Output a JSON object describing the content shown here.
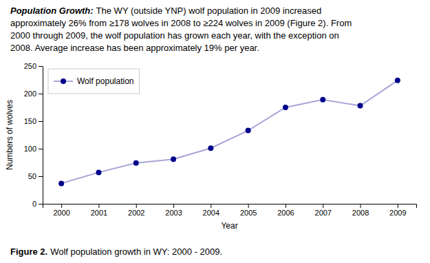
{
  "chart_data": {
    "type": "line",
    "title": "Population Growth:",
    "subtitle": [
      "The WY (outside YNP) wolf population in 2009 increased",
      "approximately 26% from ≥178 wolves in 2008 to ≥224 wolves in 2009 (Figure 2). From",
      "2000 through 2009, the wolf population has grown each year, with the exception on",
      "2008. Average increase has been approximately 19% per year."
    ],
    "annotations": [
      "Figure 2.",
      "Wolf population growth in WY: 2000 - 2009."
    ],
    "x_label": "Year",
    "y_label": "Numbers of wolves",
    "x": [
      2000,
      2001,
      2002,
      2003,
      2004,
      2005,
      2006,
      2007,
      2008,
      2009
    ],
    "series": [
      {
        "name": "Wolf population",
        "color": "#00008B",
        "marker": "circle",
        "values": [
          37,
          57,
          74,
          81,
          101,
          133,
          175,
          189,
          178,
          224
        ]
      }
    ],
    "xlim": [
      1999.5,
      2009.5
    ],
    "xticks": [
      2000,
      2001,
      2002,
      2003,
      2004,
      2005,
      2006,
      2007,
      2008,
      2009
    ],
    "ylim": [
      0,
      250
    ],
    "yticks": [
      0,
      50,
      100,
      150,
      200,
      250
    ],
    "grid": false,
    "legend": "upper left"
  }
}
